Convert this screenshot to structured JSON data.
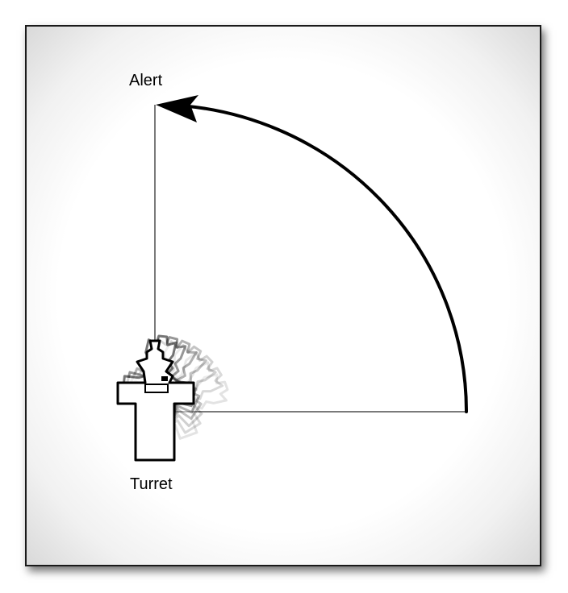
{
  "labels": {
    "alert": "Alert",
    "turret": "Turret"
  },
  "colors": {
    "axis_line": "#7a7a7a",
    "arc": "#000000",
    "frame_border": "#1a1a1a",
    "turret_fill": "#ffffff",
    "turret_outline": "#000000"
  },
  "icons": {
    "turret": "turret-icon",
    "arrow": "arrowhead-icon"
  },
  "rotation": {
    "direction": "counter-clockwise",
    "degrees": 90
  }
}
